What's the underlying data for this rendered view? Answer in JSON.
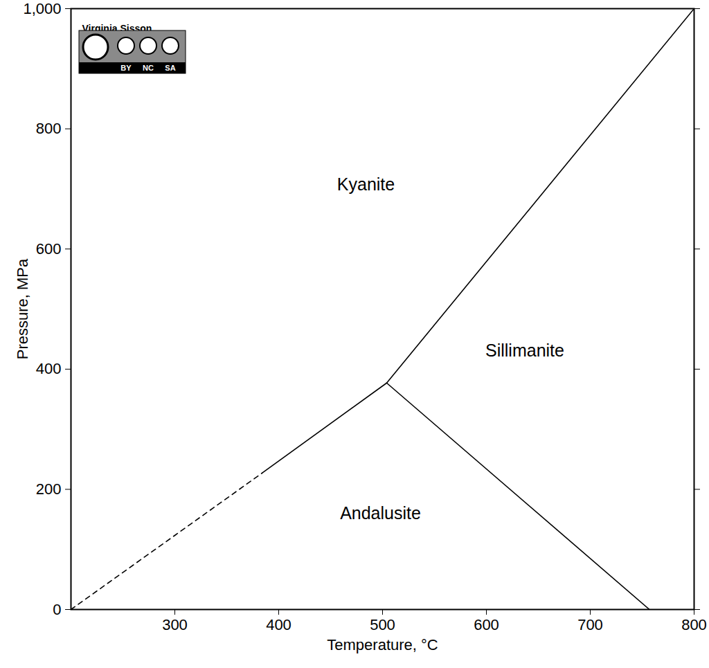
{
  "chart_data": {
    "type": "line",
    "xlabel": "Temperature, °C",
    "ylabel": "Pressure, MPa",
    "xlim": [
      200,
      800
    ],
    "xticks": [
      300,
      400,
      500,
      600,
      700,
      800
    ],
    "ylim": [
      0,
      1000
    ],
    "yticks": [
      0,
      200,
      400,
      600,
      800,
      1000
    ],
    "grid": false,
    "series": [
      {
        "color": "#000000",
        "line_style": "solid",
        "x": [
          504,
          800
        ],
        "values": [
          377,
          1000
        ]
      },
      {
        "color": "#000000",
        "line_style": "solid",
        "x": [
          504,
          757
        ],
        "values": [
          377,
          0
        ]
      },
      {
        "color": "#000000",
        "line_style": "solid",
        "x": [
          384,
          504
        ],
        "values": [
          227,
          377
        ]
      },
      {
        "color": "#000000",
        "line_style": "dashed",
        "x": [
          200,
          384
        ],
        "values": [
          0,
          227
        ]
      }
    ],
    "annotations": [
      {
        "text": "Kyanite",
        "x": 484,
        "y": 707
      },
      {
        "text": "Sillimanite",
        "x": 637,
        "y": 430
      },
      {
        "text": "Andalusite",
        "x": 498,
        "y": 160
      }
    ],
    "credit": {
      "author": "Virginia Sisson",
      "license": [
        "BY",
        "NC",
        "SA"
      ]
    }
  }
}
